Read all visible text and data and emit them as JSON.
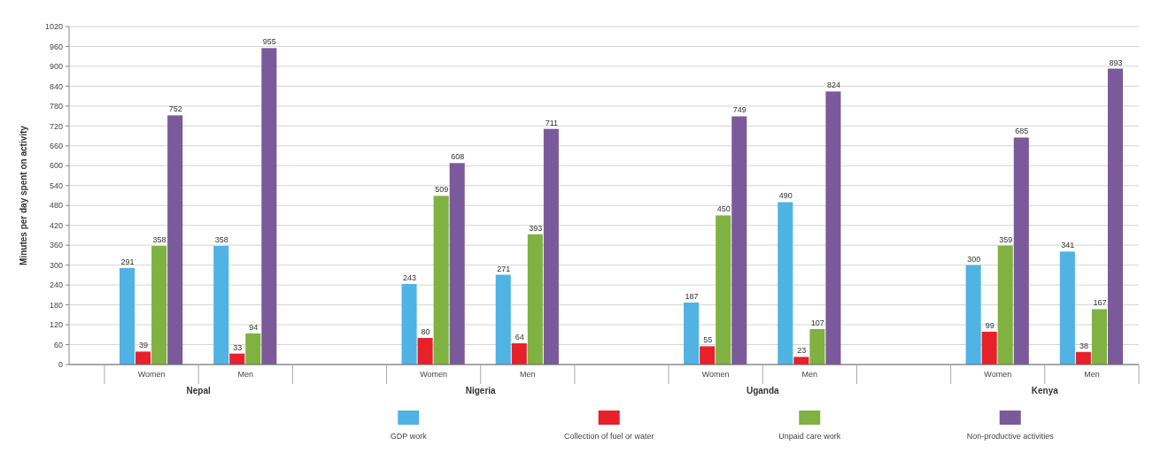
{
  "chart_data": {
    "type": "bar",
    "ylabel": "Minutes per day spent on activity",
    "categories": [
      "Women",
      "Men",
      null,
      "Women",
      "Men",
      null,
      "Women",
      "Men",
      null,
      "Women",
      "Men"
    ],
    "series": [
      {
        "name": "GDP work",
        "color": "#4fb3e3",
        "values": [
          291,
          358,
          null,
          243,
          271,
          null,
          187,
          490,
          null,
          300,
          341
        ]
      },
      {
        "name": "Collection of fuel or water",
        "color": "#e8202a",
        "values": [
          39,
          33,
          null,
          80,
          64,
          null,
          55,
          23,
          null,
          99,
          38
        ]
      },
      {
        "name": "Unpaid care work",
        "color": "#7fb241",
        "values": [
          358,
          94,
          null,
          509,
          393,
          null,
          450,
          107,
          null,
          359,
          167
        ]
      },
      {
        "name": "Non-productive activities",
        "color": "#7b5a9b",
        "values": [
          752,
          955,
          null,
          608,
          711,
          null,
          749,
          824,
          null,
          685,
          893
        ]
      }
    ],
    "annotations": [
      "Nepal",
      "Nigeria",
      "Uganda",
      "Kenya"
    ],
    "ylim": [
      0,
      1020
    ],
    "yticks": [
      0,
      60,
      120,
      180,
      240,
      300,
      360,
      420,
      480,
      540,
      600,
      660,
      720,
      780,
      840,
      900,
      960,
      1020
    ],
    "grid": "y",
    "data_labels": true,
    "legend": "bottom"
  }
}
